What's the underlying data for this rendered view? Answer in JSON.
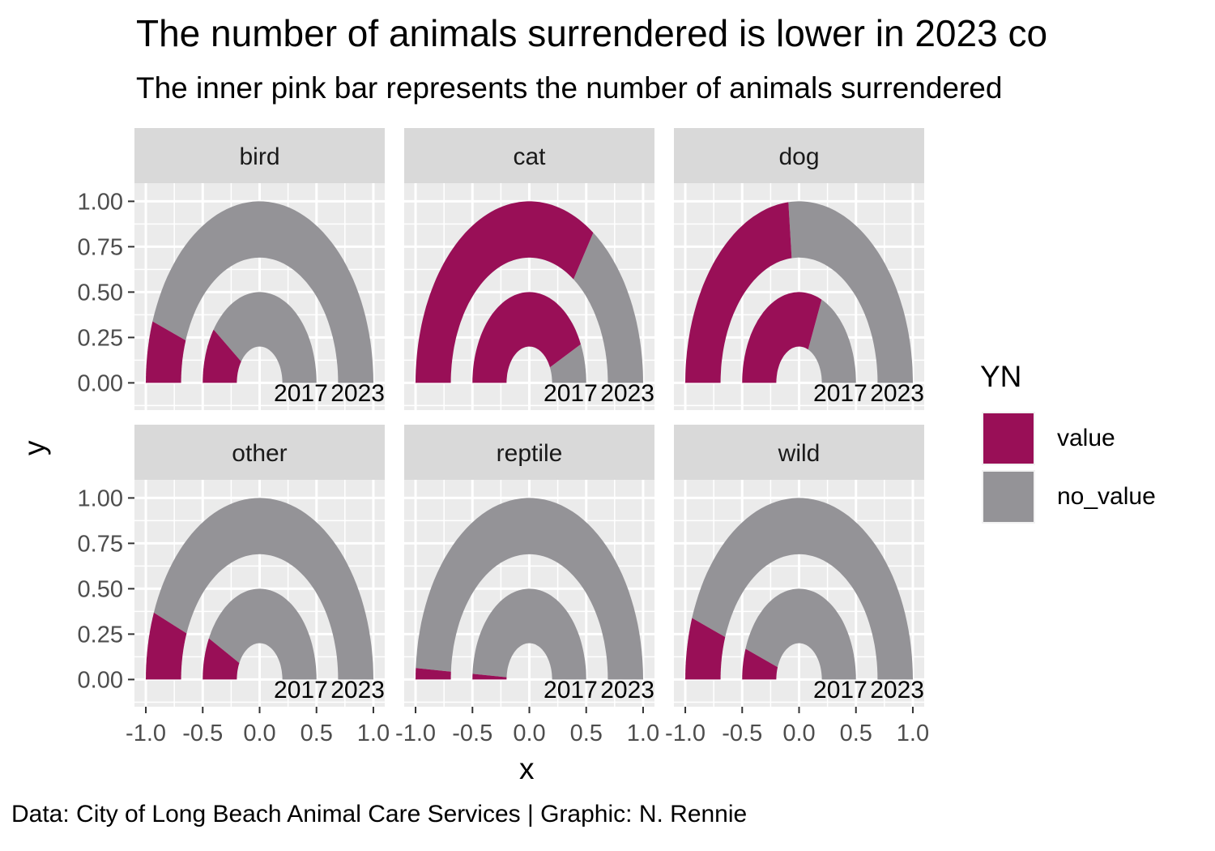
{
  "chart_data": {
    "type": "donut",
    "title": "The number of animals surrendered is lower in 2023 co",
    "subtitle": "The inner pink bar represents the number of animals surrendered",
    "xlabel": "x",
    "ylabel": "y",
    "caption": "Data: City of Long Beach Animal Care Services | Graphic: N. Rennie",
    "x_ticks": [
      "-1.0",
      "-0.5",
      "0.0",
      "0.5",
      "1.0"
    ],
    "y_ticks": [
      "1.00",
      "0.75",
      "0.50",
      "0.25",
      "0.00"
    ],
    "xlim": [
      -1.1,
      1.1
    ],
    "ylim": [
      -0.15,
      1.1
    ],
    "ring_labels": [
      "2017",
      "2023"
    ],
    "legend": {
      "title": "YN",
      "items": [
        {
          "label": "value",
          "color": "#990F57"
        },
        {
          "label": "no_value",
          "color": "#949397"
        }
      ]
    },
    "panels": [
      {
        "name": "bird",
        "inner_2017_fraction": 0.2,
        "outer_2023_fraction": 0.11
      },
      {
        "name": "cat",
        "inner_2017_fraction": 0.86,
        "outer_2023_fraction": 0.69
      },
      {
        "name": "dog",
        "inner_2017_fraction": 0.63,
        "outer_2023_fraction": 0.47
      },
      {
        "name": "other",
        "inner_2017_fraction": 0.15,
        "outer_2023_fraction": 0.12
      },
      {
        "name": "reptile",
        "inner_2017_fraction": 0.02,
        "outer_2023_fraction": 0.02
      },
      {
        "name": "wild",
        "inner_2017_fraction": 0.11,
        "outer_2023_fraction": 0.11
      }
    ]
  }
}
